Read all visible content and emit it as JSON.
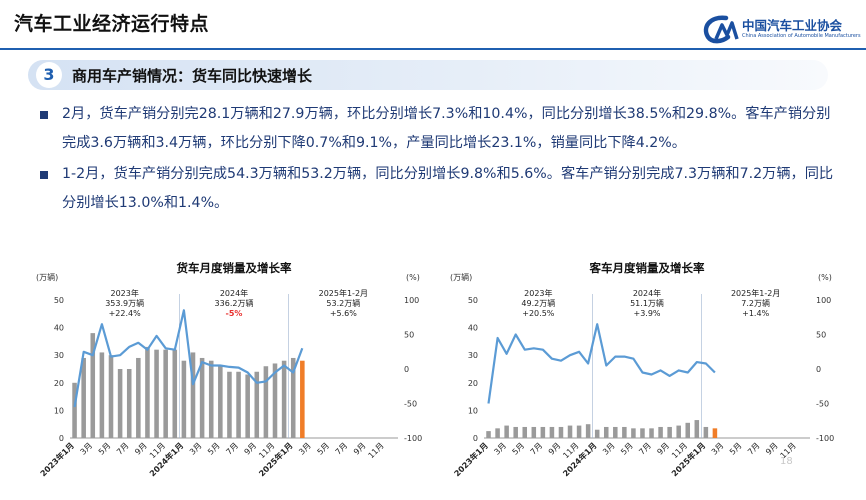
{
  "slide": {
    "title": "汽车工业经济运行特点",
    "page_number": "18"
  },
  "logo": {
    "name": "中国汽车工业协会",
    "subtitle": "China Association of Automobile Manufacturers",
    "mark": "CM"
  },
  "section": {
    "number": "3",
    "title": "商用车产销情况：货车同比快速增长"
  },
  "bullets": [
    {
      "text": "2月，货车产销分别完28.1万辆和27.9万辆，环比分别增长7.3%和10.4%，同比分别增长38.5%和29.8%。客车产销分别完成3.6万辆和3.4万辆，环比分别下降0.7%和9.1%，产量同比增长23.1%，销量同比下降4.2%。"
    },
    {
      "text": "1-2月，货车产销分别完成54.3万辆和53.2万辆，同比分别增长9.8%和5.6%。客车产销分别完成7.3万辆和7.2万辆，同比分别增长13.0%和1.4%。"
    }
  ],
  "colors": {
    "bar": "#9a9a9a",
    "bar_highlight": "#f07d28",
    "line": "#5b9bd5",
    "accent": "#1f5fb0",
    "negative": "#e8312f"
  },
  "chart_data": [
    {
      "type": "bar",
      "title": "货车月度销量及增长率",
      "ylabel": "(万辆)",
      "y2label": "(%)",
      "ylim": [
        0,
        50
      ],
      "yticks": [
        "0",
        "10",
        "20",
        "30",
        "40",
        "50"
      ],
      "y2lim": [
        -100,
        100
      ],
      "y2ticks": [
        "-100",
        "-50",
        "0",
        "50",
        "100"
      ],
      "xticks": [
        "2023年1月",
        "3月",
        "5月",
        "7月",
        "9月",
        "11月",
        "2024年1月",
        "3月",
        "5月",
        "7月",
        "9月",
        "11月",
        "2025年1月",
        "3月",
        "5月",
        "7月",
        "9月",
        "11月"
      ],
      "annotations": [
        {
          "lines": [
            "2023年",
            "353.9万辆",
            "+22.4%"
          ],
          "neg_line": -1
        },
        {
          "lines": [
            "2024年",
            "336.2万辆",
            "-5%"
          ],
          "neg_line": 2
        },
        {
          "lines": [
            "2025年1-2月",
            "53.2万辆",
            "+5.6%"
          ],
          "neg_line": -1
        }
      ],
      "series": [
        {
          "kind": "bar",
          "values": [
            20,
            29,
            38,
            31,
            30,
            25,
            25,
            29,
            33,
            32,
            32,
            32,
            28,
            31,
            29,
            28,
            26,
            24,
            24,
            23,
            24,
            26,
            27,
            28,
            29,
            28
          ]
        },
        {
          "kind": "line",
          "axis": "y2",
          "values": [
            -55,
            25,
            20,
            65,
            18,
            20,
            32,
            38,
            28,
            48,
            30,
            28,
            85,
            -22,
            10,
            5,
            5,
            3,
            2,
            -5,
            -20,
            -18,
            -5,
            5,
            -5,
            30
          ]
        }
      ]
    },
    {
      "type": "bar",
      "title": "客车月度销量及增长率",
      "ylabel": "(万辆)",
      "y2label": "(%)",
      "ylim": [
        0,
        50
      ],
      "yticks": [
        "0",
        "10",
        "20",
        "30",
        "40",
        "50"
      ],
      "y2lim": [
        -100,
        100
      ],
      "y2ticks": [
        "-100",
        "-50",
        "0",
        "50",
        "100"
      ],
      "xticks": [
        "2023年1月",
        "3月",
        "5月",
        "7月",
        "9月",
        "11月",
        "2024年1月",
        "3月",
        "5月",
        "7月",
        "9月",
        "11月",
        "2025年1月",
        "3月",
        "5月",
        "7月",
        "9月",
        "11月"
      ],
      "annotations": [
        {
          "lines": [
            "2023年",
            "49.2万辆",
            "+20.5%"
          ],
          "neg_line": -1
        },
        {
          "lines": [
            "2024年",
            "51.1万辆",
            "+3.9%"
          ],
          "neg_line": -1
        },
        {
          "lines": [
            "2025年1-2月",
            "7.2万辆",
            "+1.4%"
          ],
          "neg_line": -1
        }
      ],
      "series": [
        {
          "kind": "bar",
          "values": [
            2.5,
            3.5,
            4.5,
            4,
            4,
            4,
            4,
            4,
            4,
            4.5,
            4.5,
            5,
            3,
            4,
            4,
            4,
            3.5,
            3.5,
            3.5,
            4,
            4,
            4.5,
            5.5,
            6.5,
            4,
            3.5
          ]
        },
        {
          "kind": "line",
          "axis": "y2",
          "values": [
            -50,
            45,
            22,
            50,
            28,
            30,
            28,
            15,
            12,
            20,
            25,
            8,
            65,
            5,
            18,
            18,
            15,
            -5,
            -8,
            -2,
            -10,
            -2,
            -5,
            10,
            8,
            -5
          ]
        }
      ]
    }
  ]
}
